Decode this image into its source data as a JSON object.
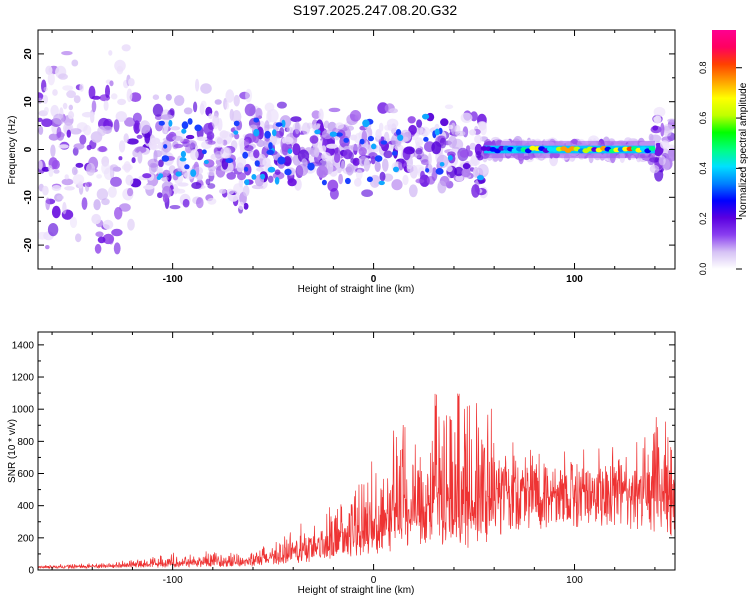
{
  "title": "S197.2025.247.08.20.G32",
  "chart_data": [
    {
      "type": "heatmap",
      "title": "S197.2025.247.08.20.G32",
      "xlabel": "Height of straight line (km)",
      "ylabel": "Frequency (Hz)",
      "xlim": [
        -167,
        150
      ],
      "ylim": [
        -25,
        25
      ],
      "xticks": [
        -100,
        0,
        100
      ],
      "yticks": [
        -20,
        -10,
        0,
        10,
        20
      ],
      "colorbar": {
        "label": "Normalized spectral amplitude",
        "range": [
          0,
          0.95
        ],
        "ticks": [
          0.0,
          0.2,
          0.4,
          0.6,
          0.8
        ],
        "colors": [
          "#ffffff",
          "#d6c2f5",
          "#8a3ff0",
          "#5a00e0",
          "#0000ff",
          "#0080ff",
          "#00e0ff",
          "#00ff80",
          "#00ff00",
          "#c0ff00",
          "#ffff00",
          "#ffa000",
          "#ff4000",
          "#ff0060",
          "#ff0090"
        ]
      },
      "ridge": {
        "x_start": 55,
        "x_end": 140,
        "freq": 0,
        "amplitude_range": [
          0.2,
          0.8
        ]
      }
    },
    {
      "type": "line",
      "xlabel": "Height of straight line (km)",
      "ylabel": "SNR (10 * v/v)",
      "xlim": [
        -167,
        150
      ],
      "ylim": [
        0,
        1480
      ],
      "xticks": [
        -100,
        0,
        100
      ],
      "yticks": [
        0,
        200,
        400,
        600,
        800,
        1000,
        1200,
        1400
      ],
      "color": "#ee3333",
      "envelope": [
        {
          "x": -167,
          "base": 20,
          "spread": 15
        },
        {
          "x": -130,
          "base": 25,
          "spread": 25
        },
        {
          "x": -100,
          "base": 40,
          "spread": 70
        },
        {
          "x": -60,
          "base": 50,
          "spread": 80
        },
        {
          "x": -30,
          "base": 120,
          "spread": 220
        },
        {
          "x": 0,
          "base": 220,
          "spread": 500
        },
        {
          "x": 20,
          "base": 320,
          "spread": 800
        },
        {
          "x": 40,
          "base": 350,
          "spread": 950
        },
        {
          "x": 58,
          "base": 320,
          "spread": 850
        },
        {
          "x": 66,
          "base": 600,
          "spread": 200
        },
        {
          "x": 100,
          "base": 620,
          "spread": 160
        },
        {
          "x": 130,
          "base": 600,
          "spread": 260
        },
        {
          "x": 140,
          "base": 500,
          "spread": 700
        },
        {
          "x": 150,
          "base": 450,
          "spread": 600
        }
      ]
    }
  ]
}
